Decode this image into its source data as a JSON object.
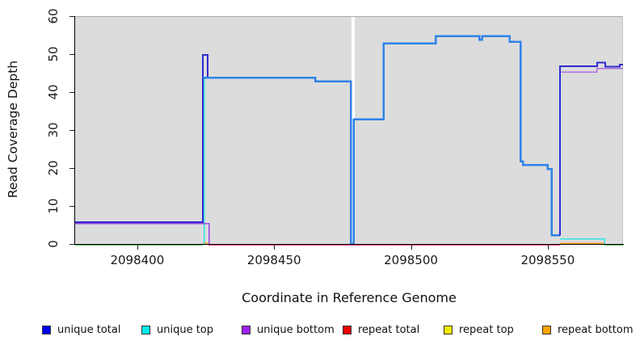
{
  "chart_data": {
    "type": "line",
    "title": "",
    "xlabel": "Coordinate in Reference Genome",
    "ylabel": "Read Coverage Depth",
    "xlim": [
      2098377.3,
      2098577.5
    ],
    "ylim": [
      0,
      60
    ],
    "x_ticks": [
      2098400,
      2098450,
      2098500,
      2098550
    ],
    "y_ticks": [
      0,
      10,
      20,
      30,
      40,
      50,
      60
    ],
    "grid": false,
    "plot_background": "#dcdcdc",
    "no_data_gap": {
      "x0": 2098478.3,
      "x1": 2098479.5
    },
    "layers": [
      {
        "series": "unique top + repeat top overlap",
        "name": "zero-line-green-left",
        "color": "#5fbb6a",
        "width": 1.5,
        "points": [
          [
            2098377.3,
            0
          ],
          [
            2098424,
            0
          ]
        ]
      },
      {
        "series": "repeat total",
        "name": "zero-line-pink-mid",
        "color": "#e8487e",
        "width": 1.5,
        "points": [
          [
            2098426,
            0
          ],
          [
            2098554.5,
            0
          ]
        ]
      },
      {
        "series": "unique top + repeat top overlap",
        "name": "zero-line-green-right",
        "color": "#5fbb6a",
        "width": 1.5,
        "points": [
          [
            2098570.7,
            0
          ],
          [
            2098577.5,
            0
          ]
        ]
      },
      {
        "series": "repeat bottom",
        "name": "orange-notch-left",
        "color": "#ffa022",
        "width": 1.5,
        "points": [
          [
            2098424,
            0.4
          ],
          [
            2098426,
            0.4
          ]
        ]
      },
      {
        "series": "repeat bottom",
        "name": "orange-segment-right",
        "color": "#ffa022",
        "width": 1.5,
        "points": [
          [
            2098554.5,
            0.4
          ],
          [
            2098570.7,
            0.4
          ]
        ]
      },
      {
        "series": "unique top",
        "name": "cyan-rise-left",
        "color": "#30e6e6",
        "width": 1.5,
        "points": [
          [
            2098424.4,
            0
          ],
          [
            2098424.4,
            44
          ]
        ]
      },
      {
        "series": "unique top",
        "name": "cyan-segment-right",
        "color": "#30e6e6",
        "width": 1.5,
        "points": [
          [
            2098554.5,
            1.5
          ],
          [
            2098570.7,
            1.5
          ],
          [
            2098570.7,
            0
          ]
        ]
      },
      {
        "series": "unique bottom",
        "name": "purple-left-segment",
        "color": "#9c43e0",
        "width": 1.5,
        "points": [
          [
            2098377.3,
            5.6
          ],
          [
            2098426.3,
            5.6
          ],
          [
            2098426.3,
            0
          ]
        ]
      },
      {
        "series": "unique total",
        "name": "navy-left-segment",
        "color": "#2f2bd0",
        "width": 2,
        "points": [
          [
            2098377.3,
            6
          ],
          [
            2098424,
            6
          ],
          [
            2098424,
            50
          ],
          [
            2098425.7,
            50
          ],
          [
            2098425.7,
            44
          ]
        ]
      },
      {
        "series": "unique total (top overlap)",
        "name": "azure-main-segment",
        "color": "#2e82e8",
        "width": 2.5,
        "points": [
          [
            2098424,
            44
          ],
          [
            2098465,
            44
          ],
          [
            2098465,
            43
          ],
          [
            2098478.1,
            43
          ],
          [
            2098478.1,
            0.3
          ],
          [
            2098479.1,
            0.3
          ],
          [
            2098479.1,
            33
          ],
          [
            2098490,
            33
          ],
          [
            2098490,
            53
          ],
          [
            2098509,
            53
          ],
          [
            2098509,
            55
          ],
          [
            2098525,
            55
          ],
          [
            2098525,
            54
          ],
          [
            2098526,
            54
          ],
          [
            2098526,
            55
          ],
          [
            2098536,
            55
          ],
          [
            2098536,
            53.5
          ],
          [
            2098540,
            53.5
          ],
          [
            2098540,
            22
          ],
          [
            2098541,
            22
          ],
          [
            2098541,
            21
          ],
          [
            2098550,
            21
          ],
          [
            2098550,
            20
          ],
          [
            2098551.5,
            20
          ],
          [
            2098551.5,
            2.5
          ],
          [
            2098554.5,
            2.5
          ]
        ]
      },
      {
        "series": "unique bottom",
        "name": "violet-right-segment",
        "color": "#a96fdc",
        "width": 1.5,
        "points": [
          [
            2098554.5,
            45.5
          ],
          [
            2098568,
            45.5
          ],
          [
            2098568,
            46.4
          ],
          [
            2098577.5,
            46.4
          ]
        ]
      },
      {
        "series": "unique total",
        "name": "navy-right-segment",
        "color": "#2f2bd0",
        "width": 2,
        "points": [
          [
            2098554.5,
            2.5
          ],
          [
            2098554.5,
            47
          ],
          [
            2098568,
            47
          ],
          [
            2098568,
            48
          ],
          [
            2098571,
            48
          ],
          [
            2098571,
            46.9
          ],
          [
            2098576.3,
            46.9
          ],
          [
            2098576.3,
            47.4
          ],
          [
            2098577.5,
            47.4
          ]
        ]
      }
    ]
  },
  "legend": {
    "items": [
      {
        "label": "unique total",
        "color": "#0000ee"
      },
      {
        "label": "unique top",
        "color": "#00eeee"
      },
      {
        "label": "unique bottom",
        "color": "#a020f0"
      },
      {
        "label": "repeat total",
        "color": "#ee0000"
      },
      {
        "label": "repeat top",
        "color": "#eeee00"
      },
      {
        "label": "repeat bottom",
        "color": "#ffa500"
      }
    ]
  }
}
